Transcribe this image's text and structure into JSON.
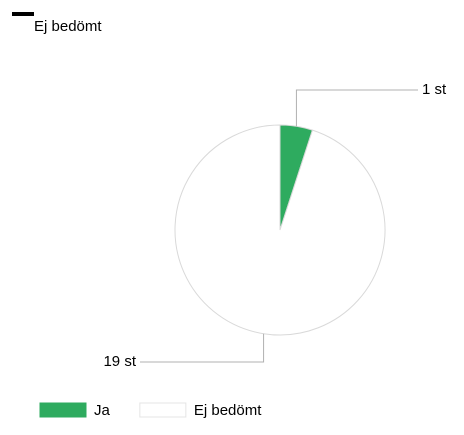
{
  "chart_data": {
    "type": "pie",
    "title": "Ej bedömt",
    "categories": [
      "Ja",
      "Ej bedömt"
    ],
    "values": [
      1,
      19
    ],
    "value_labels": [
      "1 st",
      "19 st"
    ],
    "colors": [
      "#2eab5f",
      "#ffffff"
    ],
    "legend": "bottom"
  }
}
